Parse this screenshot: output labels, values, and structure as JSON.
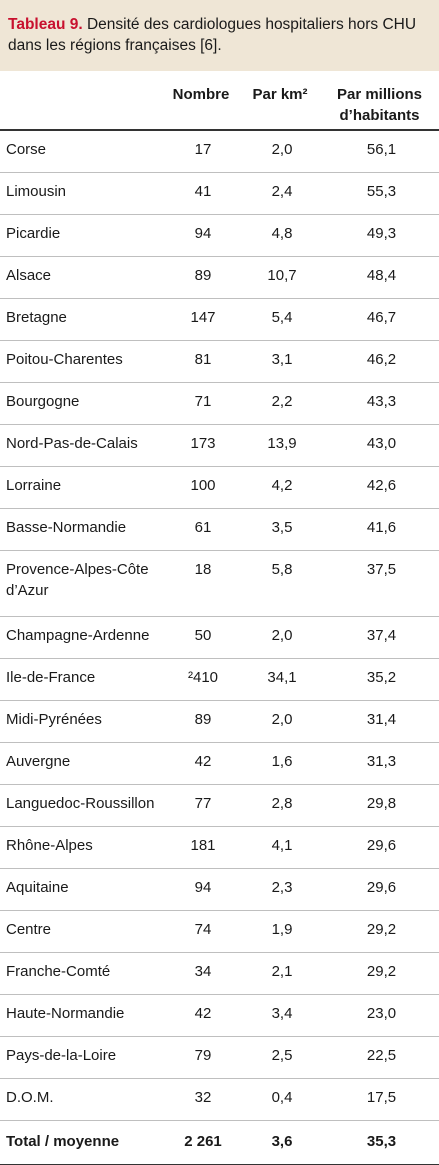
{
  "caption": {
    "label": "Tableau 9.",
    "text": " Densité des cardiologues hospitaliers hors CHU dans les régions françaises [6]."
  },
  "headers": {
    "region": "",
    "nombre": "Nombre",
    "km": "Par km²",
    "hab_line1": "Par millions",
    "hab_line2": "d’habitants"
  },
  "rows": [
    {
      "region": "Corse",
      "nombre": "17",
      "km": "2,0",
      "hab": "56,1"
    },
    {
      "region": "Limousin",
      "nombre": "41",
      "km": "2,4",
      "hab": "55,3"
    },
    {
      "region": "Picardie",
      "nombre": "94",
      "km": "4,8",
      "hab": "49,3"
    },
    {
      "region": "Alsace",
      "nombre": "89",
      "km": "10,7",
      "hab": "48,4"
    },
    {
      "region": "Bretagne",
      "nombre": "147",
      "km": "5,4",
      "hab": "46,7"
    },
    {
      "region": "Poitou-Charentes",
      "nombre": "81",
      "km": "3,1",
      "hab": "46,2"
    },
    {
      "region": "Bourgogne",
      "nombre": "71",
      "km": "2,2",
      "hab": "43,3"
    },
    {
      "region": "Nord-Pas-de-Calais",
      "nombre": "173",
      "km": "13,9",
      "hab": "43,0"
    },
    {
      "region": "Lorraine",
      "nombre": "100",
      "km": "4,2",
      "hab": "42,6"
    },
    {
      "region": "Basse-Normandie",
      "nombre": "61",
      "km": "3,5",
      "hab": "41,6"
    },
    {
      "region": "Provence-Alpes-Côte d’Azur",
      "nombre": "18",
      "km": "5,8",
      "hab": "37,5"
    },
    {
      "region": "Champagne-Ardenne",
      "nombre": "50",
      "km": "2,0",
      "hab": "37,4"
    },
    {
      "region": "Ile-de-France",
      "nombre": "²410",
      "km": "34,1",
      "hab": "35,2"
    },
    {
      "region": "Midi-Pyrénées",
      "nombre": "89",
      "km": "2,0",
      "hab": "31,4"
    },
    {
      "region": "Auvergne",
      "nombre": "42",
      "km": "1,6",
      "hab": "31,3"
    },
    {
      "region": "Languedoc-Roussillon",
      "nombre": "77",
      "km": "2,8",
      "hab": "29,8"
    },
    {
      "region": "Rhône-Alpes",
      "nombre": "181",
      "km": "4,1",
      "hab": "29,6"
    },
    {
      "region": "Aquitaine",
      "nombre": "94",
      "km": "2,3",
      "hab": "29,6"
    },
    {
      "region": "Centre",
      "nombre": "74",
      "km": "1,9",
      "hab": "29,2"
    },
    {
      "region": "Franche-Comté",
      "nombre": "34",
      "km": "2,1",
      "hab": "29,2"
    },
    {
      "region": "Haute-Normandie",
      "nombre": "42",
      "km": "3,4",
      "hab": "23,0"
    },
    {
      "region": "Pays-de-la-Loire",
      "nombre": "79",
      "km": "2,5",
      "hab": "22,5"
    },
    {
      "region": "D.O.M.",
      "nombre": "32",
      "km": "0,4",
      "hab": "17,5"
    }
  ],
  "total": {
    "region": "Total / moyenne",
    "nombre": "2 261",
    "km": "3,6",
    "hab": "35,3"
  }
}
